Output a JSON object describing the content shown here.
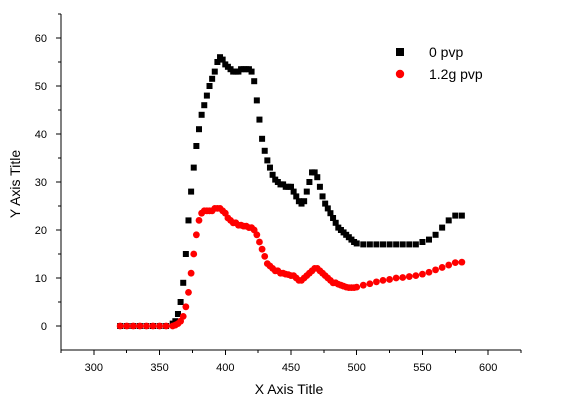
{
  "chart_data": {
    "type": "scatter",
    "xlabel": "X Axis Title",
    "ylabel": "Y Axis Title",
    "xlim": [
      275,
      625
    ],
    "ylim": [
      -5,
      65
    ],
    "xticks": [
      300,
      350,
      400,
      450,
      500,
      550,
      600
    ],
    "yticks": [
      0,
      10,
      20,
      30,
      40,
      50,
      60
    ],
    "grid": false,
    "legend_position": "top-right",
    "series": [
      {
        "name": "0 pvp",
        "color": "#000000",
        "marker": "square",
        "x": [
          320,
          325,
          330,
          335,
          340,
          345,
          350,
          355,
          360,
          362,
          364,
          366,
          368,
          370,
          372,
          374,
          376,
          378,
          380,
          382,
          384,
          386,
          388,
          390,
          392,
          394,
          396,
          398,
          400,
          402,
          404,
          406,
          408,
          410,
          412,
          414,
          416,
          418,
          420,
          422,
          424,
          426,
          428,
          430,
          432,
          434,
          436,
          438,
          440,
          442,
          444,
          446,
          448,
          450,
          452,
          454,
          456,
          458,
          460,
          462,
          464,
          466,
          468,
          470,
          472,
          474,
          476,
          478,
          480,
          482,
          484,
          486,
          488,
          490,
          492,
          494,
          496,
          498,
          500,
          505,
          510,
          515,
          520,
          525,
          530,
          535,
          540,
          545,
          550,
          555,
          560,
          565,
          570,
          575,
          580
        ],
        "y": [
          0,
          0,
          0,
          0,
          0,
          0,
          0,
          0,
          0.5,
          1,
          2.5,
          5,
          9,
          15,
          22,
          28,
          33,
          37.5,
          41,
          44,
          46,
          48,
          50,
          51.5,
          53,
          55,
          56,
          55.5,
          54.5,
          54,
          53.5,
          53,
          53,
          53,
          53.5,
          53.5,
          53.5,
          53.5,
          53,
          51,
          47,
          43,
          39,
          36.5,
          34.5,
          33,
          31.5,
          30.5,
          30,
          29.5,
          29.5,
          29,
          29,
          29,
          28,
          27,
          26,
          25.5,
          26,
          28,
          30,
          32,
          32,
          31,
          29,
          27,
          25.5,
          24.5,
          23.5,
          22.5,
          21.5,
          20.5,
          20,
          19.5,
          19,
          18.5,
          18,
          17.5,
          17.2,
          17,
          17,
          17,
          17,
          17,
          17,
          17,
          17,
          17,
          17.5,
          18,
          19,
          20.5,
          22,
          23,
          23
        ]
      },
      {
        "name": "1.2g pvp",
        "color": "#ff0000",
        "marker": "circle",
        "x": [
          320,
          325,
          330,
          335,
          340,
          345,
          350,
          355,
          360,
          362,
          364,
          366,
          368,
          370,
          372,
          374,
          376,
          378,
          380,
          382,
          384,
          386,
          388,
          390,
          392,
          394,
          396,
          398,
          400,
          402,
          404,
          406,
          408,
          410,
          412,
          414,
          416,
          418,
          420,
          422,
          424,
          426,
          428,
          430,
          432,
          434,
          436,
          438,
          440,
          442,
          444,
          446,
          448,
          450,
          452,
          454,
          456,
          458,
          460,
          462,
          464,
          466,
          468,
          470,
          472,
          474,
          476,
          478,
          480,
          482,
          484,
          486,
          488,
          490,
          492,
          494,
          496,
          498,
          500,
          505,
          510,
          515,
          520,
          525,
          530,
          535,
          540,
          545,
          550,
          555,
          560,
          565,
          570,
          575,
          580
        ],
        "y": [
          0,
          0,
          0,
          0,
          0,
          0,
          0,
          0,
          0,
          0.2,
          0.5,
          1,
          2,
          4,
          7,
          11,
          15,
          19,
          22,
          23.5,
          24,
          24,
          24,
          24,
          24.5,
          24.5,
          24.5,
          24,
          23.5,
          22.5,
          22,
          21.5,
          21.5,
          21,
          21,
          20.8,
          20.8,
          20.5,
          20.5,
          20,
          19,
          17.5,
          16,
          14.5,
          13,
          12.5,
          12,
          11.5,
          11.5,
          11,
          11,
          10.8,
          10.7,
          10.5,
          10.5,
          10,
          9.5,
          9.5,
          10,
          10.5,
          11,
          11.5,
          12,
          12,
          11.5,
          11,
          10.5,
          10,
          9.5,
          9,
          9,
          8.7,
          8.5,
          8.3,
          8.1,
          8,
          8,
          8,
          8.1,
          8.5,
          8.8,
          9.2,
          9.5,
          9.7,
          10,
          10.1,
          10.3,
          10.5,
          10.8,
          11.2,
          11.7,
          12.2,
          12.7,
          13.2,
          13.3
        ]
      }
    ]
  }
}
